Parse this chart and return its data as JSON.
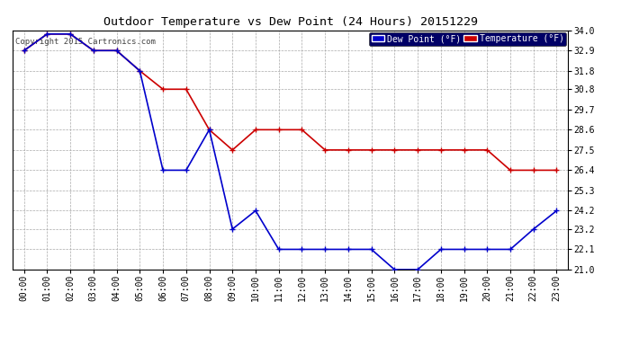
{
  "title": "Outdoor Temperature vs Dew Point (24 Hours) 20151229",
  "copyright": "Copyright 2015 Cartronics.com",
  "x_labels": [
    "00:00",
    "01:00",
    "02:00",
    "03:00",
    "04:00",
    "05:00",
    "06:00",
    "07:00",
    "08:00",
    "09:00",
    "10:00",
    "11:00",
    "12:00",
    "13:00",
    "14:00",
    "15:00",
    "16:00",
    "17:00",
    "18:00",
    "19:00",
    "20:00",
    "21:00",
    "22:00",
    "23:00"
  ],
  "temperature": [
    32.9,
    33.8,
    33.8,
    32.9,
    32.9,
    31.8,
    30.8,
    30.8,
    28.6,
    27.5,
    28.6,
    28.6,
    28.6,
    27.5,
    27.5,
    27.5,
    27.5,
    27.5,
    27.5,
    27.5,
    27.5,
    26.4,
    26.4,
    26.4
  ],
  "dew_point": [
    32.9,
    33.8,
    33.8,
    32.9,
    32.9,
    31.8,
    26.4,
    26.4,
    28.6,
    23.2,
    24.2,
    22.1,
    22.1,
    22.1,
    22.1,
    22.1,
    21.0,
    21.0,
    22.1,
    22.1,
    22.1,
    22.1,
    23.2,
    24.2
  ],
  "temp_color": "#CC0000",
  "dew_color": "#0000CC",
  "bg_color": "#FFFFFF",
  "grid_color": "#AAAAAA",
  "ylim_min": 21.0,
  "ylim_max": 34.0,
  "yticks": [
    21.0,
    22.1,
    23.2,
    24.2,
    25.3,
    26.4,
    27.5,
    28.6,
    29.7,
    30.8,
    31.8,
    32.9,
    34.0
  ],
  "legend_dew_label": "Dew Point (°F)",
  "legend_temp_label": "Temperature (°F)",
  "legend_dew_bg": "#0000CC",
  "legend_temp_bg": "#CC0000"
}
